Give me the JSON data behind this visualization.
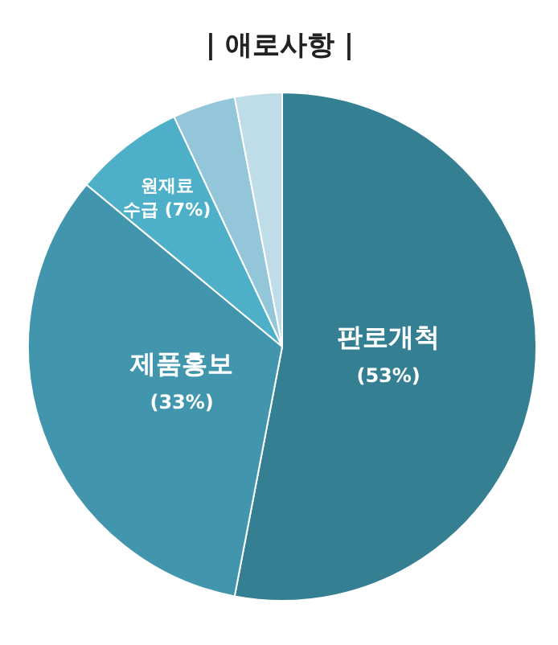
{
  "chart_data": {
    "type": "pie",
    "title": "| 애로사항 |",
    "categories": [
      "판로개척",
      "제품홍보",
      "원재료\n수급",
      null,
      null
    ],
    "values": [
      53,
      33,
      7,
      4,
      3
    ],
    "value_labels": [
      "(53%)",
      "(33%)",
      "(7%)",
      null,
      null
    ],
    "colors": [
      "#357f93",
      "#4196ae",
      "#4eb0c8",
      "#92c6d8",
      "#bfdde8"
    ]
  }
}
